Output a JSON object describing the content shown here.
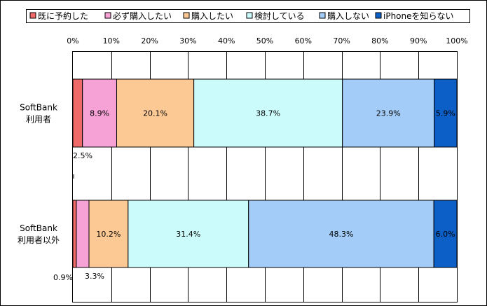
{
  "chart_data": {
    "type": "bar",
    "orientation": "horizontal",
    "stacked": "percent",
    "xlim": [
      0,
      100
    ],
    "x_ticks": [
      "0%",
      "10%",
      "20%",
      "30%",
      "40%",
      "50%",
      "60%",
      "70%",
      "80%",
      "90%",
      "100%"
    ],
    "grid": "vertical",
    "legend_position": "top",
    "categories": [
      {
        "line1": "SoftBank",
        "line2": "利用者"
      },
      {
        "line1": "SoftBank",
        "line2": "利用者以外"
      }
    ],
    "series": [
      {
        "name": "既に予約した",
        "color": "#f06a6a",
        "values": [
          2.5,
          0.9
        ],
        "labels": [
          "2.5%",
          "0.9%"
        ]
      },
      {
        "name": "必ず購入したい",
        "color": "#f6a2d6",
        "values": [
          8.9,
          3.3
        ],
        "labels": [
          "8.9%",
          "3.3%"
        ]
      },
      {
        "name": "購入したい",
        "color": "#fcc994",
        "values": [
          20.1,
          10.2
        ],
        "labels": [
          "20.1%",
          "10.2%"
        ]
      },
      {
        "name": "検討している",
        "color": "#ccfbfc",
        "values": [
          38.7,
          31.4
        ],
        "labels": [
          "38.7%",
          "31.4%"
        ]
      },
      {
        "name": "購入しない",
        "color": "#a3cdf8",
        "values": [
          23.9,
          48.3
        ],
        "labels": [
          "23.9%",
          "48.3%"
        ]
      },
      {
        "name": "iPhoneを知らない",
        "color": "#0b5fc6",
        "values": [
          5.9,
          6.0
        ],
        "labels": [
          "5.9%",
          "6.0%"
        ]
      }
    ]
  }
}
